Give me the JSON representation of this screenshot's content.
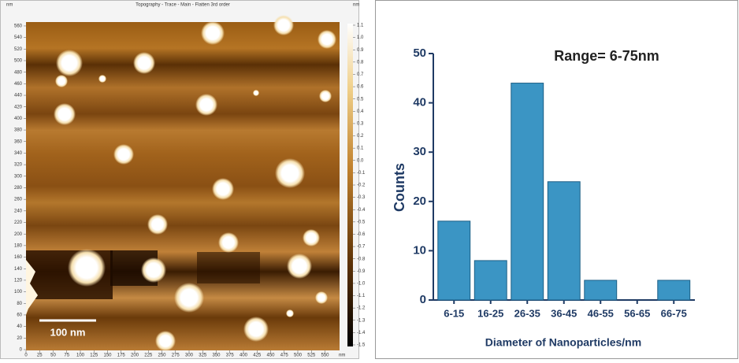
{
  "afm_image": {
    "title": "Topography - Trace - Main - Flatten 3rd order",
    "y_unit": "nm",
    "colorbar_unit": "nm",
    "x_unit": "nm",
    "xticks": [
      0,
      25,
      50,
      75,
      100,
      125,
      150,
      175,
      200,
      225,
      250,
      275,
      300,
      325,
      350,
      375,
      400,
      425,
      450,
      475,
      500,
      525,
      550
    ],
    "yticks": [
      0,
      20,
      40,
      60,
      80,
      100,
      120,
      140,
      160,
      180,
      200,
      220,
      240,
      260,
      280,
      300,
      320,
      340,
      360,
      380,
      400,
      420,
      440,
      460,
      480,
      500,
      520,
      540,
      560
    ],
    "colorbar_ticks": [
      1.1,
      {
        "value": 1,
        "label": "1.0"
      },
      0.9,
      0.8,
      0.7,
      0.6,
      0.5,
      0.4,
      0.3,
      0.2,
      0.1,
      {
        "value": 0,
        "label": "0.0"
      },
      -0.1,
      -0.2,
      -0.3,
      -0.4,
      -0.5,
      -0.6,
      -0.7,
      -0.8,
      -0.9,
      {
        "value": -1,
        "label": "-1.0"
      },
      -1.1,
      -1.2,
      -1.3,
      -1.4,
      -1.5
    ],
    "scale_bar_label": "100 nm"
  },
  "chart_data": {
    "type": "bar",
    "annotation": "Range= 6-75nm",
    "xlabel": "Diameter of Nanoparticles/nm",
    "ylabel": "Counts",
    "categories": [
      "6-15",
      "16-25",
      "26-35",
      "36-45",
      "46-55",
      "56-65",
      "66-75"
    ],
    "values": [
      16,
      8,
      44,
      24,
      4,
      0,
      4
    ],
    "color": "#3b95c4",
    "ylim": [
      0,
      50
    ],
    "yticks": [
      0,
      10,
      20,
      30,
      40,
      50
    ]
  }
}
